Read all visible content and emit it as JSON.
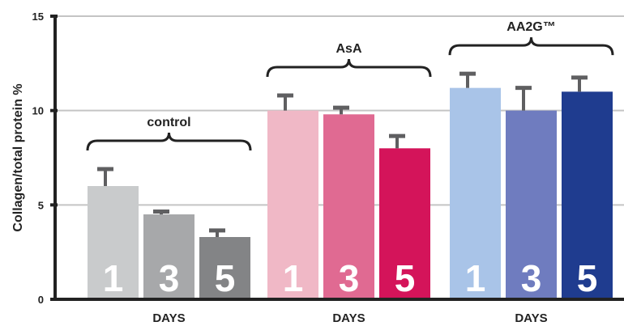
{
  "chart_data": {
    "type": "bar",
    "ylabel": "Collagen/total protein %",
    "ylim": [
      0,
      15
    ],
    "yticks": [
      0,
      5,
      10,
      15
    ],
    "grid": true,
    "groups": [
      {
        "name": "control",
        "xlabel": "DAYS",
        "bars": [
          {
            "day": "1",
            "value": 6.0,
            "error": 0.9,
            "color": "#c9cbcc"
          },
          {
            "day": "3",
            "value": 4.5,
            "error": 0.15,
            "color": "#a7a8aa"
          },
          {
            "day": "5",
            "value": 3.3,
            "error": 0.35,
            "color": "#838486"
          }
        ]
      },
      {
        "name": "AsA",
        "xlabel": "DAYS",
        "bars": [
          {
            "day": "1",
            "value": 10.0,
            "error": 0.8,
            "color": "#f0b8c6"
          },
          {
            "day": "3",
            "value": 9.8,
            "error": 0.35,
            "color": "#e06a92"
          },
          {
            "day": "5",
            "value": 8.0,
            "error": 0.65,
            "color": "#d4145a"
          }
        ]
      },
      {
        "name": "AA2G™",
        "xlabel": "DAYS",
        "bars": [
          {
            "day": "1",
            "value": 11.2,
            "error": 0.75,
            "color": "#a9c4e8"
          },
          {
            "day": "3",
            "value": 10.0,
            "error": 1.2,
            "color": "#6f7cbf"
          },
          {
            "day": "5",
            "value": 11.0,
            "error": 0.75,
            "color": "#1f3c8f"
          }
        ]
      }
    ]
  }
}
